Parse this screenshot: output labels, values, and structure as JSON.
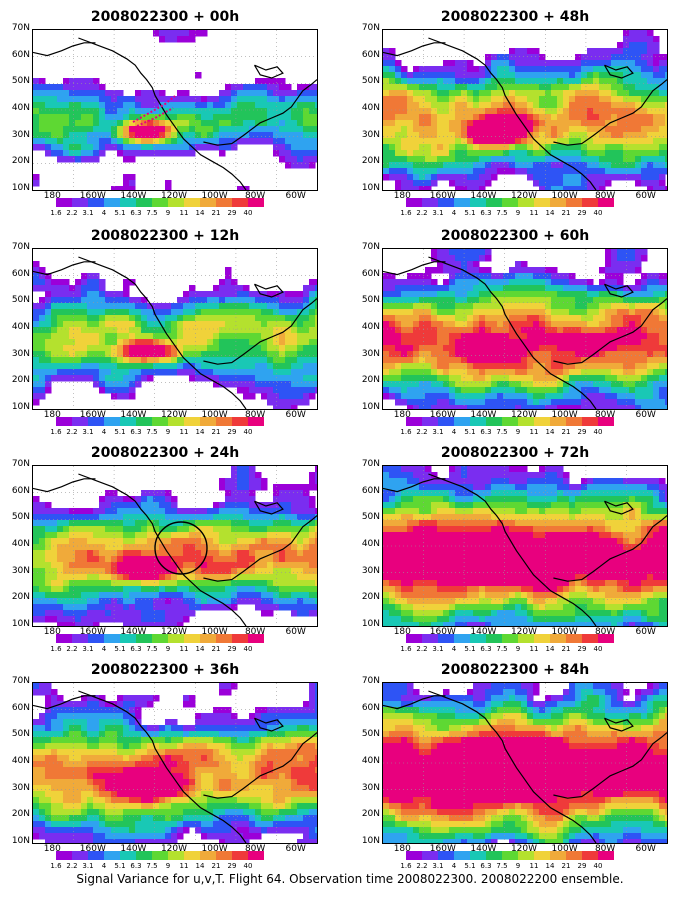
{
  "caption": "Signal Variance for u,v,T. Flight 64. Observation time 2008022300. 2008022200 ensemble.",
  "lat_labels": [
    "70N",
    "60N",
    "50N",
    "40N",
    "30N",
    "20N",
    "10N"
  ],
  "lon_labels": [
    "180",
    "160W",
    "140W",
    "120W",
    "100W",
    "80W",
    "60W"
  ],
  "colorbar": {
    "labels": [
      "1.6",
      "2.2",
      "3.1",
      "4",
      "5.1",
      "6.3",
      "7.5",
      "9",
      "11",
      "14",
      "21",
      "29",
      "40"
    ],
    "colors": [
      "#ffffff",
      "#9b00d9",
      "#7a2df0",
      "#2e54f5",
      "#2fa3f0",
      "#19c8b5",
      "#22c45a",
      "#5ed833",
      "#b4e12e",
      "#f0d23a",
      "#f0aa3a",
      "#f07836",
      "#ef3a3a",
      "#e8007e"
    ]
  },
  "panels": [
    {
      "title": "2008022300 + 00h",
      "level": 0.1,
      "track": true,
      "circle": false
    },
    {
      "title": "2008022300 + 12h",
      "level": 0.3,
      "track": false,
      "circle": false
    },
    {
      "title": "2008022300 + 24h",
      "level": 0.45,
      "track": false,
      "circle": true
    },
    {
      "title": "2008022300 + 36h",
      "level": 0.55,
      "track": false,
      "circle": false
    },
    {
      "title": "2008022300 + 48h",
      "level": 0.55,
      "track": false,
      "circle": false
    },
    {
      "title": "2008022300 + 60h",
      "level": 0.65,
      "track": false,
      "circle": false
    },
    {
      "title": "2008022300 + 72h",
      "level": 0.8,
      "track": false,
      "circle": false
    },
    {
      "title": "2008022300 + 84h",
      "level": 0.9,
      "track": false,
      "circle": false
    }
  ]
}
